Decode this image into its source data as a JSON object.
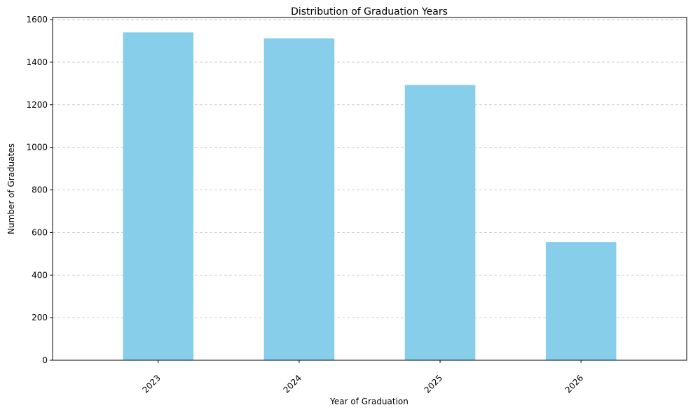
{
  "chart_data": {
    "type": "bar",
    "title": "Distribution of Graduation Years",
    "xlabel": "Year of Graduation",
    "ylabel": "Number of Graduates",
    "categories": [
      "2023",
      "2024",
      "2025",
      "2026"
    ],
    "values": [
      1540,
      1512,
      1293,
      555
    ],
    "ylim": [
      0,
      1600
    ],
    "yticks": [
      0,
      200,
      400,
      600,
      800,
      1000,
      1200,
      1400,
      1600
    ],
    "ytick_labels": [
      "0",
      "200",
      "400",
      "600",
      "800",
      "1000",
      "1200",
      "1400",
      "1600"
    ],
    "xtick_rotation": 45,
    "grid": "y-dashed",
    "bar_color": "#87CEEB",
    "legend": "none"
  }
}
